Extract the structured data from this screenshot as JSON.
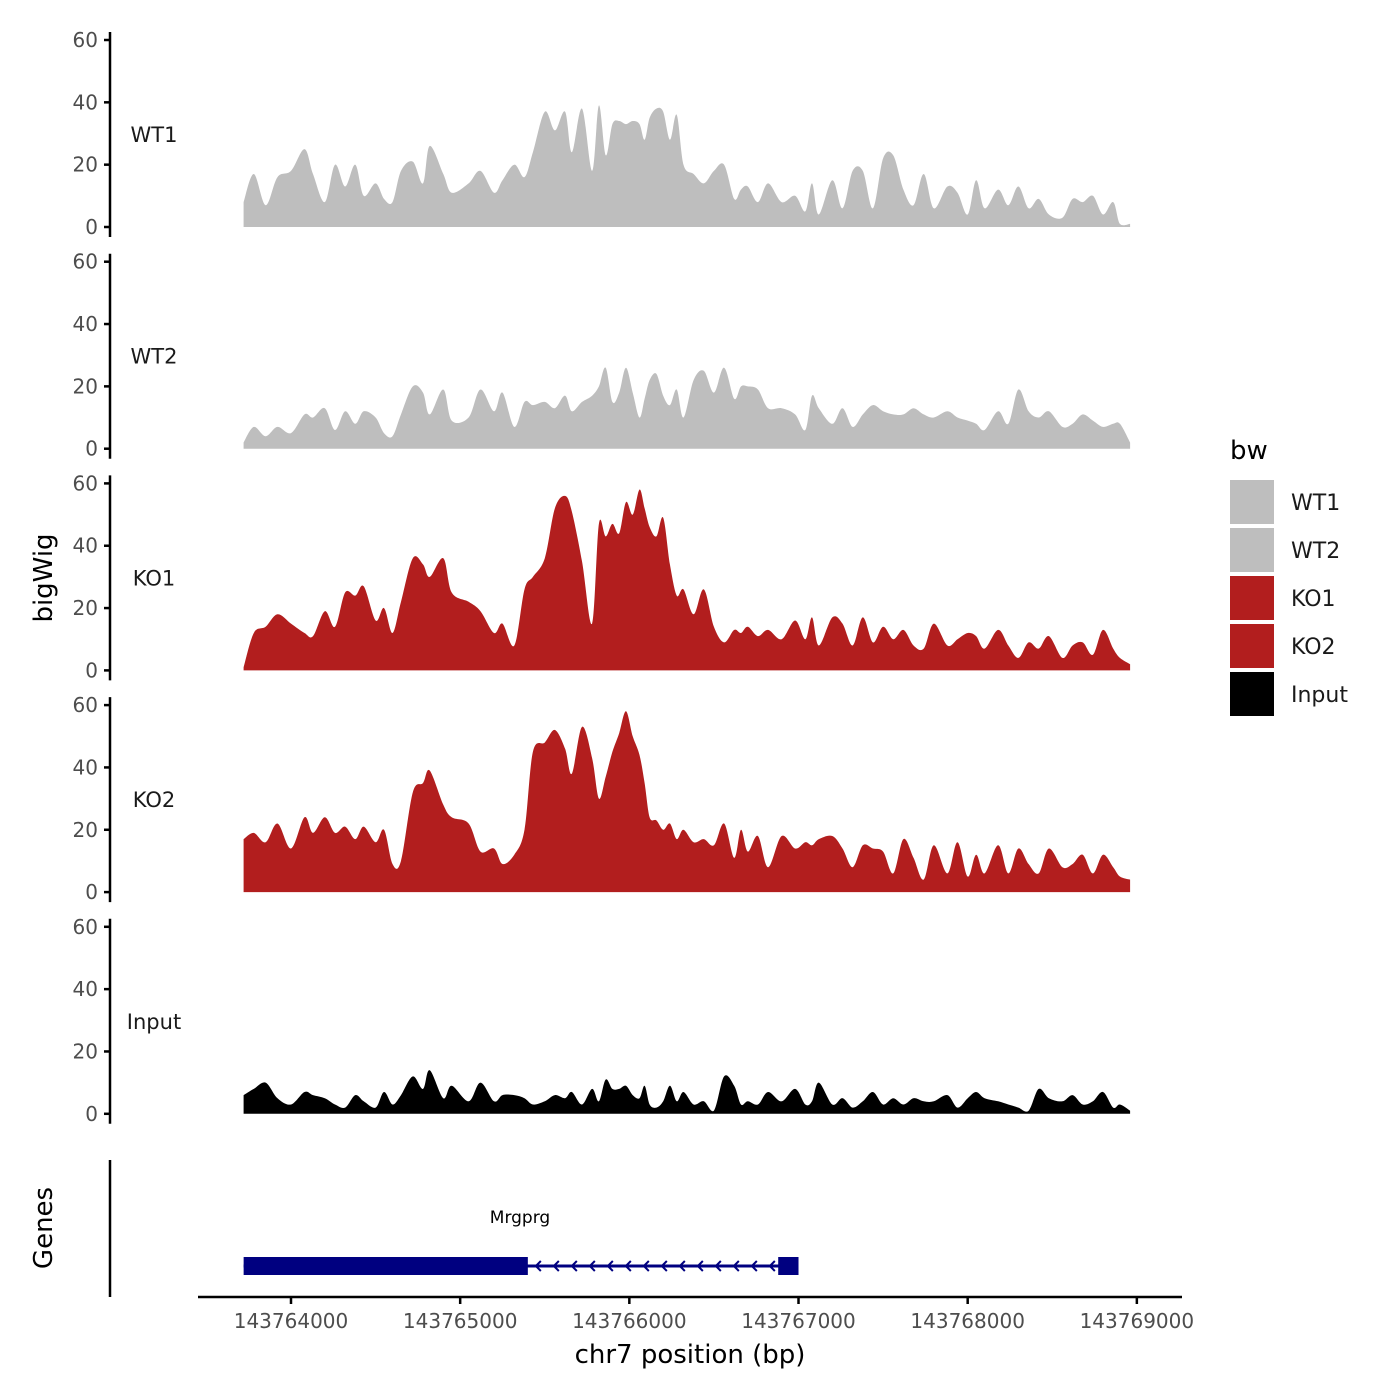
{
  "chart_data": {
    "type": "area",
    "ylabel": "bigWig",
    "xlabel": "chr7 position (bp)",
    "xlim": [
      143763700,
      143769000
    ],
    "ylim": [
      0,
      60
    ],
    "yticks": [
      "0",
      "20",
      "40",
      "60"
    ],
    "xticks": [
      143764000,
      143765000,
      143766000,
      143767000,
      143768000,
      143769000
    ],
    "xtick_labels": [
      "143764000",
      "143765000",
      "143766000",
      "143767000",
      "143768000",
      "143769000"
    ],
    "legend": {
      "title": "bw",
      "position": "right",
      "entries": [
        {
          "name": "WT1",
          "color": "#bebebe"
        },
        {
          "name": "WT2",
          "color": "#bebebe"
        },
        {
          "name": "KO1",
          "color": "#b21e1e"
        },
        {
          "name": "KO2",
          "color": "#b21e1e"
        },
        {
          "name": "Input",
          "color": "#000000"
        }
      ]
    },
    "series": [
      {
        "name": "WT1",
        "color": "#bebebe",
        "x": [
          143763720,
          143763780,
          143763850,
          143763920,
          143764000,
          143764080,
          143764130,
          143764200,
          143764260,
          143764320,
          143764380,
          143764430,
          143764500,
          143764550,
          143764600,
          143764650,
          143764720,
          143764780,
          143764820,
          143764900,
          143764950,
          143765050,
          143765120,
          143765200,
          143765250,
          143765320,
          143765380,
          143765430,
          143765500,
          143765560,
          143765620,
          143765660,
          143765720,
          143765780,
          143765820,
          143765860,
          143765900,
          143765940,
          143765980,
          143766020,
          143766060,
          143766090,
          143766120,
          143766160,
          143766200,
          143766240,
          143766280,
          143766320,
          143766380,
          143766440,
          143766500,
          143766560,
          143766620,
          143766660,
          143766700,
          143766760,
          143766820,
          143766900,
          143766980,
          143767040,
          143767080,
          143767120,
          143767200,
          143767260,
          143767320,
          143767380,
          143767440,
          143767500,
          143767560,
          143767620,
          143767680,
          143767740,
          143767800,
          143767880,
          143767940,
          143768000,
          143768050,
          143768100,
          143768180,
          143768240,
          143768300,
          143768360,
          143768420,
          143768480,
          143768560,
          143768620,
          143768680,
          143768740,
          143768800,
          143768860,
          143768900,
          143768960
        ],
        "values": [
          8,
          17,
          7,
          16,
          18,
          25,
          17,
          8,
          20,
          13,
          20,
          10,
          14,
          9,
          8,
          18,
          21,
          14,
          26,
          17,
          11,
          14,
          18,
          11,
          15,
          20,
          16,
          24,
          37,
          31,
          37,
          24,
          38,
          18,
          39,
          23,
          33,
          34,
          33,
          34,
          33,
          28,
          35,
          38,
          37,
          28,
          36,
          20,
          17,
          14,
          18,
          20,
          9,
          12,
          13,
          8,
          14,
          8,
          10,
          5,
          14,
          4,
          15,
          6,
          18,
          18,
          6,
          22,
          23,
          12,
          7,
          17,
          6,
          13,
          11,
          4,
          15,
          6,
          12,
          7,
          13,
          6,
          9,
          4,
          3,
          9,
          8,
          10,
          4,
          8,
          1,
          1
        ]
      },
      {
        "name": "WT2",
        "color": "#bebebe",
        "x": [
          143763720,
          143763780,
          143763850,
          143763920,
          143764000,
          143764080,
          143764130,
          143764200,
          143764260,
          143764320,
          143764380,
          143764430,
          143764500,
          143764550,
          143764600,
          143764650,
          143764720,
          143764780,
          143764820,
          143764900,
          143764950,
          143765050,
          143765120,
          143765200,
          143765250,
          143765320,
          143765380,
          143765430,
          143765500,
          143765560,
          143765620,
          143765660,
          143765720,
          143765780,
          143765820,
          143765860,
          143765900,
          143765940,
          143765980,
          143766020,
          143766060,
          143766090,
          143766120,
          143766160,
          143766200,
          143766240,
          143766280,
          143766320,
          143766380,
          143766440,
          143766500,
          143766560,
          143766620,
          143766660,
          143766700,
          143766760,
          143766820,
          143766900,
          143766980,
          143767040,
          143767080,
          143767120,
          143767200,
          143767260,
          143767320,
          143767380,
          143767440,
          143767500,
          143767560,
          143767620,
          143767680,
          143767740,
          143767800,
          143767880,
          143767940,
          143768000,
          143768050,
          143768100,
          143768180,
          143768240,
          143768300,
          143768360,
          143768420,
          143768480,
          143768560,
          143768620,
          143768680,
          143768740,
          143768800,
          143768860,
          143768900,
          143768960
        ],
        "values": [
          2,
          7,
          4,
          7,
          5,
          11,
          10,
          13,
          6,
          12,
          8,
          12,
          10,
          5,
          4,
          11,
          20,
          18,
          11,
          19,
          9,
          10,
          19,
          12,
          18,
          7,
          15,
          14,
          15,
          13,
          17,
          12,
          15,
          17,
          20,
          26,
          15,
          18,
          26,
          18,
          10,
          16,
          22,
          24,
          17,
          14,
          19,
          10,
          22,
          25,
          18,
          26,
          16,
          20,
          20,
          19,
          13,
          13,
          11,
          6,
          17,
          13,
          8,
          13,
          7,
          11,
          14,
          12,
          11,
          11,
          13,
          11,
          10,
          12,
          10,
          9,
          8,
          6,
          12,
          8,
          19,
          12,
          10,
          12,
          7,
          8,
          11,
          9,
          7,
          8,
          8,
          2
        ]
      },
      {
        "name": "KO1",
        "color": "#b21e1e",
        "x": [
          143763720,
          143763780,
          143763850,
          143763920,
          143764000,
          143764080,
          143764130,
          143764200,
          143764260,
          143764320,
          143764380,
          143764430,
          143764500,
          143764550,
          143764600,
          143764650,
          143764720,
          143764780,
          143764820,
          143764900,
          143764950,
          143765050,
          143765120,
          143765200,
          143765250,
          143765320,
          143765380,
          143765430,
          143765500,
          143765560,
          143765620,
          143765660,
          143765720,
          143765780,
          143765820,
          143765860,
          143765900,
          143765940,
          143765980,
          143766020,
          143766060,
          143766090,
          143766120,
          143766160,
          143766200,
          143766240,
          143766280,
          143766320,
          143766380,
          143766440,
          143766500,
          143766560,
          143766620,
          143766660,
          143766700,
          143766760,
          143766820,
          143766900,
          143766980,
          143767040,
          143767080,
          143767120,
          143767200,
          143767260,
          143767320,
          143767380,
          143767440,
          143767500,
          143767560,
          143767620,
          143767680,
          143767740,
          143767800,
          143767880,
          143767940,
          143768000,
          143768050,
          143768100,
          143768180,
          143768240,
          143768300,
          143768360,
          143768420,
          143768480,
          143768560,
          143768620,
          143768680,
          143768740,
          143768800,
          143768860,
          143768900,
          143768960
        ],
        "values": [
          1,
          12,
          14,
          18,
          15,
          12,
          11,
          19,
          14,
          25,
          24,
          27,
          16,
          20,
          12,
          22,
          36,
          34,
          30,
          36,
          25,
          22,
          19,
          12,
          15,
          8,
          26,
          30,
          36,
          52,
          56,
          51,
          35,
          15,
          47,
          43,
          47,
          44,
          54,
          50,
          58,
          52,
          46,
          43,
          49,
          34,
          24,
          26,
          18,
          26,
          14,
          9,
          13,
          12,
          14,
          11,
          13,
          10,
          16,
          10,
          17,
          8,
          17,
          15,
          8,
          17,
          9,
          14,
          10,
          13,
          8,
          7,
          15,
          8,
          10,
          12,
          11,
          7,
          13,
          8,
          4,
          9,
          7,
          11,
          4,
          8,
          9,
          5,
          13,
          7,
          4,
          2
        ]
      },
      {
        "name": "KO2",
        "color": "#b21e1e",
        "x": [
          143763720,
          143763780,
          143763850,
          143763920,
          143764000,
          143764080,
          143764130,
          143764200,
          143764260,
          143764320,
          143764380,
          143764430,
          143764500,
          143764550,
          143764600,
          143764650,
          143764720,
          143764780,
          143764820,
          143764900,
          143764950,
          143765050,
          143765120,
          143765200,
          143765250,
          143765320,
          143765380,
          143765430,
          143765500,
          143765560,
          143765620,
          143765660,
          143765720,
          143765780,
          143765820,
          143765860,
          143765900,
          143765940,
          143765980,
          143766020,
          143766060,
          143766090,
          143766120,
          143766160,
          143766200,
          143766240,
          143766280,
          143766320,
          143766380,
          143766440,
          143766500,
          143766560,
          143766620,
          143766660,
          143766700,
          143766760,
          143766820,
          143766900,
          143766980,
          143767040,
          143767080,
          143767120,
          143767200,
          143767260,
          143767320,
          143767380,
          143767440,
          143767500,
          143767560,
          143767620,
          143767680,
          143767740,
          143767800,
          143767880,
          143767940,
          143768000,
          143768050,
          143768100,
          143768180,
          143768240,
          143768300,
          143768360,
          143768420,
          143768480,
          143768560,
          143768620,
          143768680,
          143768740,
          143768800,
          143768860,
          143768900,
          143768960
        ],
        "values": [
          17,
          19,
          16,
          22,
          14,
          24,
          19,
          24,
          19,
          21,
          17,
          21,
          16,
          20,
          9,
          10,
          32,
          35,
          39,
          28,
          24,
          22,
          13,
          14,
          9,
          12,
          20,
          45,
          48,
          52,
          46,
          38,
          53,
          43,
          30,
          37,
          45,
          51,
          58,
          50,
          44,
          35,
          24,
          23,
          20,
          22,
          17,
          20,
          16,
          17,
          15,
          22,
          11,
          20,
          13,
          18,
          8,
          18,
          14,
          16,
          15,
          17,
          18,
          14,
          8,
          15,
          14,
          13,
          6,
          17,
          11,
          4,
          15,
          6,
          16,
          5,
          12,
          6,
          15,
          6,
          14,
          9,
          6,
          14,
          8,
          9,
          12,
          6,
          12,
          8,
          5,
          4
        ]
      },
      {
        "name": "Input",
        "color": "#000000",
        "x": [
          143763720,
          143763780,
          143763850,
          143763920,
          143764000,
          143764080,
          143764130,
          143764200,
          143764260,
          143764320,
          143764380,
          143764430,
          143764500,
          143764550,
          143764600,
          143764650,
          143764720,
          143764780,
          143764820,
          143764900,
          143764950,
          143765050,
          143765120,
          143765200,
          143765250,
          143765320,
          143765380,
          143765430,
          143765500,
          143765560,
          143765620,
          143765660,
          143765720,
          143765780,
          143765820,
          143765860,
          143765900,
          143765940,
          143765980,
          143766020,
          143766060,
          143766090,
          143766120,
          143766160,
          143766200,
          143766240,
          143766280,
          143766320,
          143766380,
          143766440,
          143766500,
          143766560,
          143766620,
          143766660,
          143766700,
          143766760,
          143766820,
          143766900,
          143766980,
          143767040,
          143767080,
          143767120,
          143767200,
          143767260,
          143767320,
          143767380,
          143767440,
          143767500,
          143767560,
          143767620,
          143767680,
          143767740,
          143767800,
          143767880,
          143767940,
          143768000,
          143768050,
          143768100,
          143768180,
          143768240,
          143768300,
          143768360,
          143768420,
          143768480,
          143768560,
          143768620,
          143768680,
          143768740,
          143768800,
          143768860,
          143768900,
          143768960
        ],
        "values": [
          6,
          8,
          10,
          5,
          3,
          7,
          6,
          5,
          3,
          2,
          6,
          4,
          2,
          7,
          3,
          6,
          12,
          8,
          14,
          5,
          9,
          4,
          10,
          4,
          6,
          6,
          5,
          3,
          4,
          6,
          5,
          7,
          3,
          8,
          4,
          11,
          8,
          8,
          9,
          6,
          5,
          9,
          3,
          2,
          4,
          9,
          4,
          7,
          3,
          4,
          1,
          12,
          9,
          3,
          4,
          3,
          7,
          4,
          8,
          3,
          4,
          10,
          3,
          5,
          2,
          4,
          7,
          3,
          5,
          3,
          5,
          4,
          4,
          6,
          2,
          5,
          7,
          5,
          4,
          3,
          2,
          1,
          8,
          5,
          4,
          6,
          3,
          4,
          7,
          2,
          3,
          1
        ]
      }
    ],
    "genes": [
      {
        "name": "Mrgprg",
        "strand": "-",
        "start": 143763720,
        "end": 143766990,
        "exons": [
          [
            143763720,
            143765400
          ],
          [
            143766880,
            143767000
          ]
        ],
        "color": "#000080"
      }
    ],
    "genes_track_label": "Genes"
  }
}
